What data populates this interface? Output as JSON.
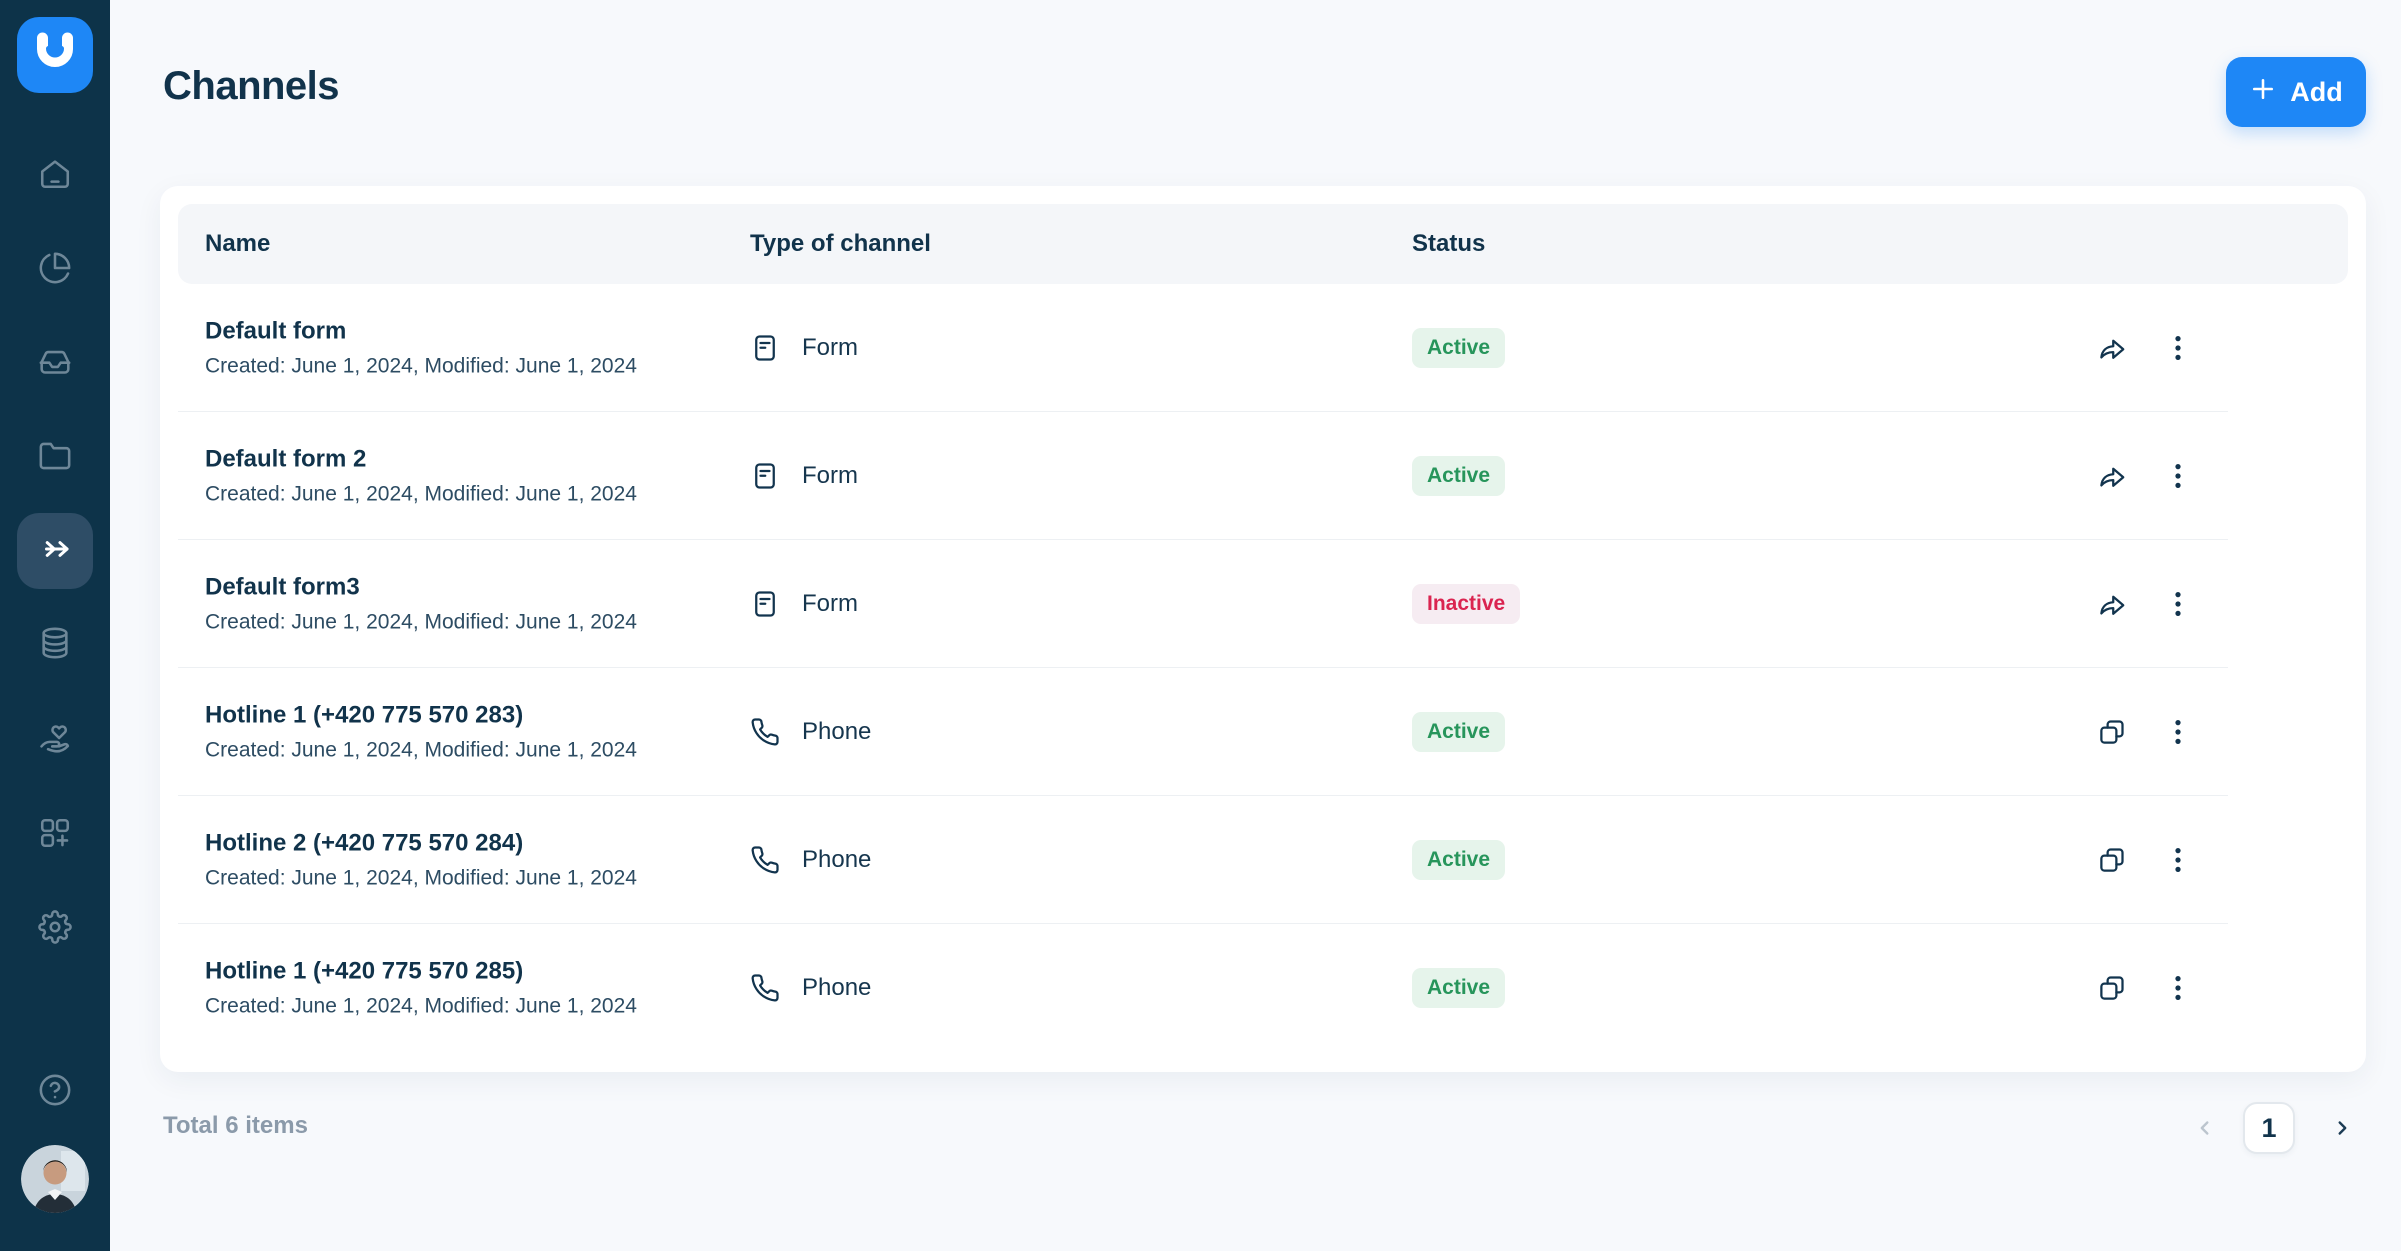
{
  "app": {
    "accent_blue": "#1e87f6",
    "sidebar_bg": "#0d3349"
  },
  "sidebar": {
    "logo_icon": "u-logo-icon",
    "items": [
      {
        "icon": "home-icon",
        "active": false
      },
      {
        "icon": "pie-chart-icon",
        "active": false
      },
      {
        "icon": "inbox-icon",
        "active": false
      },
      {
        "icon": "folder-icon",
        "active": false
      },
      {
        "icon": "channels-arrow-icon",
        "active": true
      },
      {
        "icon": "database-icon",
        "active": false
      },
      {
        "icon": "hand-heart-icon",
        "active": false
      },
      {
        "icon": "apps-plus-icon",
        "active": false
      },
      {
        "icon": "gear-icon",
        "active": false
      }
    ],
    "footer_icons": [
      "help-icon",
      "avatar"
    ]
  },
  "header": {
    "title": "Channels",
    "add_button": {
      "label": "Add",
      "icon": "plus-icon"
    }
  },
  "table": {
    "columns": [
      {
        "label": "Name"
      },
      {
        "label": "Type of channel"
      },
      {
        "label": "Status"
      }
    ],
    "rows": [
      {
        "name": "Default form",
        "meta": "Created: June 1, 2024, Modified: June 1, 2024",
        "type": "Form",
        "type_icon": "form-icon",
        "status": "Active",
        "action_icon": "share-icon"
      },
      {
        "name": "Default form 2",
        "meta": "Created: June 1, 2024, Modified: June 1, 2024",
        "type": "Form",
        "type_icon": "form-icon",
        "status": "Active",
        "action_icon": "share-icon"
      },
      {
        "name": "Default form3",
        "meta": "Created: June 1, 2024, Modified: June 1, 2024",
        "type": "Form",
        "type_icon": "form-icon",
        "status": "Inactive",
        "action_icon": "share-icon"
      },
      {
        "name": "Hotline 1 (+420 775 570 283)",
        "meta": "Created: June 1, 2024, Modified: June 1, 2024",
        "type": "Phone",
        "type_icon": "phone-icon",
        "status": "Active",
        "action_icon": "copy-icon"
      },
      {
        "name": "Hotline 2 (+420 775 570 284)",
        "meta": "Created: June 1, 2024, Modified: June 1, 2024",
        "type": "Phone",
        "type_icon": "phone-icon",
        "status": "Active",
        "action_icon": "copy-icon"
      },
      {
        "name": "Hotline 1 (+420 775 570 285)",
        "meta": "Created: June 1, 2024, Modified: June 1, 2024",
        "type": "Phone",
        "type_icon": "phone-icon",
        "status": "Active",
        "action_icon": "copy-icon"
      }
    ],
    "status_colors": {
      "Active": {
        "bg": "#e6f4eb",
        "text": "#27955b"
      },
      "Inactive": {
        "bg": "#f6ecf2",
        "text": "#da2450"
      }
    }
  },
  "pagination": {
    "total": "Total 6 items",
    "page": "1",
    "prev_icon": "chevron-left-icon",
    "next_icon": "chevron-right-icon"
  }
}
